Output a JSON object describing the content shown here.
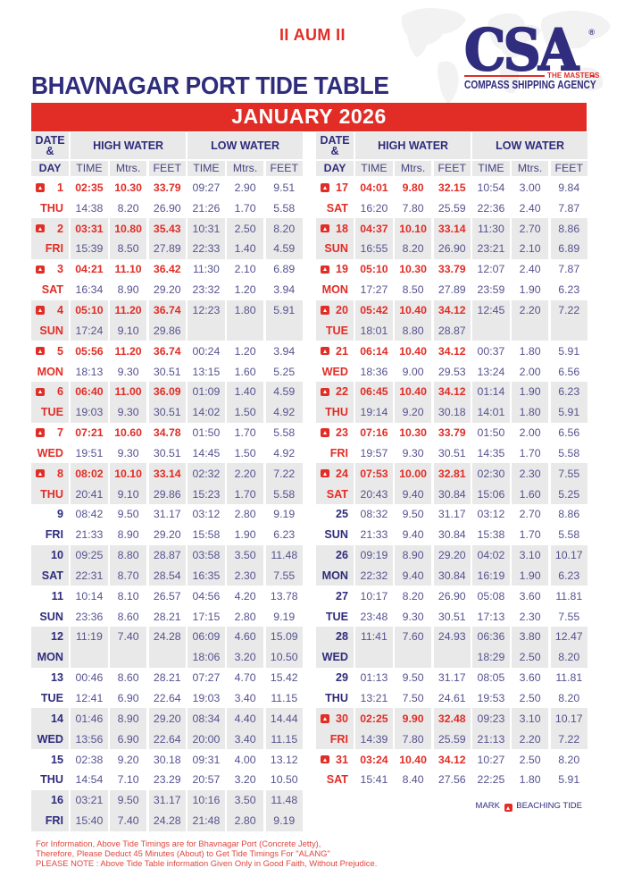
{
  "header": {
    "invocation": "II AUM II",
    "title": "BHAVNAGAR PORT TIDE TABLE",
    "month": "JANUARY 2026"
  },
  "logo": {
    "acronym": "CSA",
    "registered": "®",
    "tagline": "THE MASTERS",
    "company": "COMPASS SHIPPING AGENCY"
  },
  "table_headers": {
    "date": "DATE",
    "amp": "&",
    "day": "DAY",
    "high_water": "HIGH WATER",
    "low_water": "LOW WATER",
    "time": "TIME",
    "mtrs": "Mtrs.",
    "feet": "FEET"
  },
  "days": [
    {
      "day": "1",
      "name": "THU",
      "beaching": true,
      "rows": [
        [
          "02:35",
          "10.30",
          "33.79",
          "09:27",
          "2.90",
          "9.51"
        ],
        [
          "14:38",
          "8.20",
          "26.90",
          "21:26",
          "1.70",
          "5.58"
        ]
      ]
    },
    {
      "day": "2",
      "name": "FRI",
      "beaching": true,
      "rows": [
        [
          "03:31",
          "10.80",
          "35.43",
          "10:31",
          "2.50",
          "8.20"
        ],
        [
          "15:39",
          "8.50",
          "27.89",
          "22:33",
          "1.40",
          "4.59"
        ]
      ]
    },
    {
      "day": "3",
      "name": "SAT",
      "beaching": true,
      "rows": [
        [
          "04:21",
          "11.10",
          "36.42",
          "11:30",
          "2.10",
          "6.89"
        ],
        [
          "16:34",
          "8.90",
          "29.20",
          "23:32",
          "1.20",
          "3.94"
        ]
      ]
    },
    {
      "day": "4",
      "name": "SUN",
      "beaching": true,
      "rows": [
        [
          "05:10",
          "11.20",
          "36.74",
          "12:23",
          "1.80",
          "5.91"
        ],
        [
          "17:24",
          "9.10",
          "29.86",
          "",
          "",
          ""
        ]
      ]
    },
    {
      "day": "5",
      "name": "MON",
      "beaching": true,
      "rows": [
        [
          "05:56",
          "11.20",
          "36.74",
          "00:24",
          "1.20",
          "3.94"
        ],
        [
          "18:13",
          "9.30",
          "30.51",
          "13:15",
          "1.60",
          "5.25"
        ]
      ]
    },
    {
      "day": "6",
      "name": "TUE",
      "beaching": true,
      "rows": [
        [
          "06:40",
          "11.00",
          "36.09",
          "01:09",
          "1.40",
          "4.59"
        ],
        [
          "19:03",
          "9.30",
          "30.51",
          "14:02",
          "1.50",
          "4.92"
        ]
      ]
    },
    {
      "day": "7",
      "name": "WED",
      "beaching": true,
      "rows": [
        [
          "07:21",
          "10.60",
          "34.78",
          "01:50",
          "1.70",
          "5.58"
        ],
        [
          "19:51",
          "9.30",
          "30.51",
          "14:45",
          "1.50",
          "4.92"
        ]
      ]
    },
    {
      "day": "8",
      "name": "THU",
      "beaching": true,
      "rows": [
        [
          "08:02",
          "10.10",
          "33.14",
          "02:32",
          "2.20",
          "7.22"
        ],
        [
          "20:41",
          "9.10",
          "29.86",
          "15:23",
          "1.70",
          "5.58"
        ]
      ]
    },
    {
      "day": "9",
      "name": "FRI",
      "beaching": false,
      "rows": [
        [
          "08:42",
          "9.50",
          "31.17",
          "03:12",
          "2.80",
          "9.19"
        ],
        [
          "21:33",
          "8.90",
          "29.20",
          "15:58",
          "1.90",
          "6.23"
        ]
      ]
    },
    {
      "day": "10",
      "name": "SAT",
      "beaching": false,
      "rows": [
        [
          "09:25",
          "8.80",
          "28.87",
          "03:58",
          "3.50",
          "11.48"
        ],
        [
          "22:31",
          "8.70",
          "28.54",
          "16:35",
          "2.30",
          "7.55"
        ]
      ]
    },
    {
      "day": "11",
      "name": "SUN",
      "beaching": false,
      "rows": [
        [
          "10:14",
          "8.10",
          "26.57",
          "04:56",
          "4.20",
          "13.78"
        ],
        [
          "23:36",
          "8.60",
          "28.21",
          "17:15",
          "2.80",
          "9.19"
        ]
      ]
    },
    {
      "day": "12",
      "name": "MON",
      "beaching": false,
      "rows": [
        [
          "11:19",
          "7.40",
          "24.28",
          "06:09",
          "4.60",
          "15.09"
        ],
        [
          "",
          "",
          "",
          "18:06",
          "3.20",
          "10.50"
        ]
      ]
    },
    {
      "day": "13",
      "name": "TUE",
      "beaching": false,
      "rows": [
        [
          "00:46",
          "8.60",
          "28.21",
          "07:27",
          "4.70",
          "15.42"
        ],
        [
          "12:41",
          "6.90",
          "22.64",
          "19:03",
          "3.40",
          "11.15"
        ]
      ]
    },
    {
      "day": "14",
      "name": "WED",
      "beaching": false,
      "rows": [
        [
          "01:46",
          "8.90",
          "29.20",
          "08:34",
          "4.40",
          "14.44"
        ],
        [
          "13:56",
          "6.90",
          "22.64",
          "20:00",
          "3.40",
          "11.15"
        ]
      ]
    },
    {
      "day": "15",
      "name": "THU",
      "beaching": false,
      "rows": [
        [
          "02:38",
          "9.20",
          "30.18",
          "09:31",
          "4.00",
          "13.12"
        ],
        [
          "14:54",
          "7.10",
          "23.29",
          "20:57",
          "3.20",
          "10.50"
        ]
      ]
    },
    {
      "day": "16",
      "name": "FRI",
      "beaching": false,
      "rows": [
        [
          "03:21",
          "9.50",
          "31.17",
          "10:16",
          "3.50",
          "11.48"
        ],
        [
          "15:40",
          "7.40",
          "24.28",
          "21:48",
          "2.80",
          "9.19"
        ]
      ]
    },
    {
      "day": "17",
      "name": "SAT",
      "beaching": true,
      "rows": [
        [
          "04:01",
          "9.80",
          "32.15",
          "10:54",
          "3.00",
          "9.84"
        ],
        [
          "16:20",
          "7.80",
          "25.59",
          "22:36",
          "2.40",
          "7.87"
        ]
      ]
    },
    {
      "day": "18",
      "name": "SUN",
      "beaching": true,
      "rows": [
        [
          "04:37",
          "10.10",
          "33.14",
          "11:30",
          "2.70",
          "8.86"
        ],
        [
          "16:55",
          "8.20",
          "26.90",
          "23:21",
          "2.10",
          "6.89"
        ]
      ]
    },
    {
      "day": "19",
      "name": "MON",
      "beaching": true,
      "rows": [
        [
          "05:10",
          "10.30",
          "33.79",
          "12:07",
          "2.40",
          "7.87"
        ],
        [
          "17:27",
          "8.50",
          "27.89",
          "23:59",
          "1.90",
          "6.23"
        ]
      ]
    },
    {
      "day": "20",
      "name": "TUE",
      "beaching": true,
      "rows": [
        [
          "05:42",
          "10.40",
          "34.12",
          "12:45",
          "2.20",
          "7.22"
        ],
        [
          "18:01",
          "8.80",
          "28.87",
          "",
          "",
          ""
        ]
      ]
    },
    {
      "day": "21",
      "name": "WED",
      "beaching": true,
      "rows": [
        [
          "06:14",
          "10.40",
          "34.12",
          "00:37",
          "1.80",
          "5.91"
        ],
        [
          "18:36",
          "9.00",
          "29.53",
          "13:24",
          "2.00",
          "6.56"
        ]
      ]
    },
    {
      "day": "22",
      "name": "THU",
      "beaching": true,
      "rows": [
        [
          "06:45",
          "10.40",
          "34.12",
          "01:14",
          "1.90",
          "6.23"
        ],
        [
          "19:14",
          "9.20",
          "30.18",
          "14:01",
          "1.80",
          "5.91"
        ]
      ]
    },
    {
      "day": "23",
      "name": "FRI",
      "beaching": true,
      "rows": [
        [
          "07:16",
          "10.30",
          "33.79",
          "01:50",
          "2.00",
          "6.56"
        ],
        [
          "19:57",
          "9.30",
          "30.51",
          "14:35",
          "1.70",
          "5.58"
        ]
      ]
    },
    {
      "day": "24",
      "name": "SAT",
      "beaching": true,
      "rows": [
        [
          "07:53",
          "10.00",
          "32.81",
          "02:30",
          "2.30",
          "7.55"
        ],
        [
          "20:43",
          "9.40",
          "30.84",
          "15:06",
          "1.60",
          "5.25"
        ]
      ]
    },
    {
      "day": "25",
      "name": "SUN",
      "beaching": false,
      "rows": [
        [
          "08:32",
          "9.50",
          "31.17",
          "03:12",
          "2.70",
          "8.86"
        ],
        [
          "21:33",
          "9.40",
          "30.84",
          "15:38",
          "1.70",
          "5.58"
        ]
      ]
    },
    {
      "day": "26",
      "name": "MON",
      "beaching": false,
      "rows": [
        [
          "09:19",
          "8.90",
          "29.20",
          "04:02",
          "3.10",
          "10.17"
        ],
        [
          "22:32",
          "9.40",
          "30.84",
          "16:19",
          "1.90",
          "6.23"
        ]
      ]
    },
    {
      "day": "27",
      "name": "TUE",
      "beaching": false,
      "rows": [
        [
          "10:17",
          "8.20",
          "26.90",
          "05:08",
          "3.60",
          "11.81"
        ],
        [
          "23:48",
          "9.30",
          "30.51",
          "17:13",
          "2.30",
          "7.55"
        ]
      ]
    },
    {
      "day": "28",
      "name": "WED",
      "beaching": false,
      "rows": [
        [
          "11:41",
          "7.60",
          "24.93",
          "06:36",
          "3.80",
          "12.47"
        ],
        [
          "",
          "",
          "",
          "18:29",
          "2.50",
          "8.20"
        ]
      ]
    },
    {
      "day": "29",
      "name": "THU",
      "beaching": false,
      "rows": [
        [
          "01:13",
          "9.50",
          "31.17",
          "08:05",
          "3.60",
          "11.81"
        ],
        [
          "13:21",
          "7.50",
          "24.61",
          "19:53",
          "2.50",
          "8.20"
        ]
      ]
    },
    {
      "day": "30",
      "name": "FRI",
      "beaching": true,
      "rows": [
        [
          "02:25",
          "9.90",
          "32.48",
          "09:23",
          "3.10",
          "10.17"
        ],
        [
          "14:39",
          "7.80",
          "25.59",
          "21:13",
          "2.20",
          "7.22"
        ]
      ]
    },
    {
      "day": "31",
      "name": "SAT",
      "beaching": true,
      "rows": [
        [
          "03:24",
          "10.40",
          "34.12",
          "10:27",
          "2.50",
          "8.20"
        ],
        [
          "15:41",
          "8.40",
          "27.56",
          "22:25",
          "1.80",
          "5.91"
        ]
      ]
    }
  ],
  "legend": {
    "mark": "MARK",
    "label": "BEACHING TIDE"
  },
  "notes": [
    "For Information, Above Tide Timings are for Bhavnagar Port (Concrete Jetty),",
    "Therefore, Please Deduct 45 Minutes (About) to Get Tide Timings For \"ALANG\"",
    "PLEASE NOTE : Above Tide Table information Given Only in Good Faith, Without Prejudice."
  ],
  "colors": {
    "red": "#e12d26",
    "navy": "#2f2c7c",
    "value_ink": "#55528e",
    "band_gray": "#e9e9e9",
    "note_red": "#e0453e"
  }
}
